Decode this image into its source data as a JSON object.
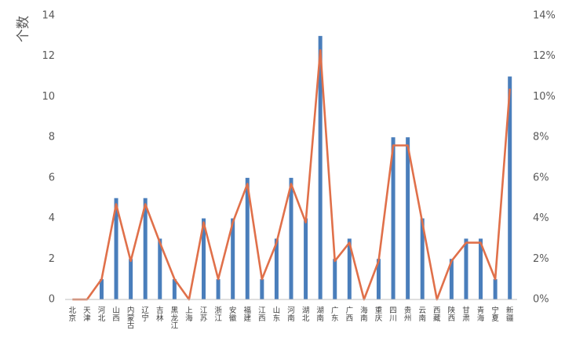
{
  "chart_data": {
    "type": "bar",
    "title": "",
    "ylabel": "个数",
    "ylim": [
      0,
      14
    ],
    "y_ticks": [
      "0",
      "2",
      "4",
      "6",
      "8",
      "10",
      "12",
      "14"
    ],
    "y2lim": [
      0,
      0.14
    ],
    "y2_ticks": [
      "0%",
      "2%",
      "4%",
      "6%",
      "8%",
      "10%",
      "12%",
      "14%"
    ],
    "grid": false,
    "legend": "none",
    "categories": [
      "北京",
      "天津",
      "河北",
      "山西",
      "内蒙古",
      "辽宁",
      "吉林",
      "黑龙江",
      "上海",
      "江苏",
      "浙江",
      "安徽",
      "福建",
      "江西",
      "山东",
      "河南",
      "湖北",
      "湖南",
      "广东",
      "广西",
      "海南",
      "重庆",
      "四川",
      "贵州",
      "云南",
      "西藏",
      "陕西",
      "甘肃",
      "青海",
      "宁夏",
      "新疆"
    ],
    "series": [
      {
        "type": "bar",
        "axis": "left",
        "color": "#4a7ebb",
        "values": [
          0,
          0,
          1,
          5,
          2,
          5,
          3,
          1,
          0,
          4,
          1,
          4,
          6,
          1,
          3,
          6,
          4,
          13,
          2,
          3,
          0,
          2,
          8,
          8,
          4,
          0,
          2,
          3,
          3,
          1,
          11
        ]
      },
      {
        "type": "line",
        "axis": "right",
        "color": "#e0704a",
        "values": [
          0,
          0,
          0.01,
          0.047,
          0.019,
          0.047,
          0.028,
          0.01,
          0,
          0.038,
          0.01,
          0.038,
          0.057,
          0.01,
          0.028,
          0.057,
          0.038,
          0.123,
          0.019,
          0.028,
          0,
          0.019,
          0.076,
          0.076,
          0.038,
          0,
          0.019,
          0.028,
          0.028,
          0.01,
          0.104
        ]
      }
    ]
  }
}
